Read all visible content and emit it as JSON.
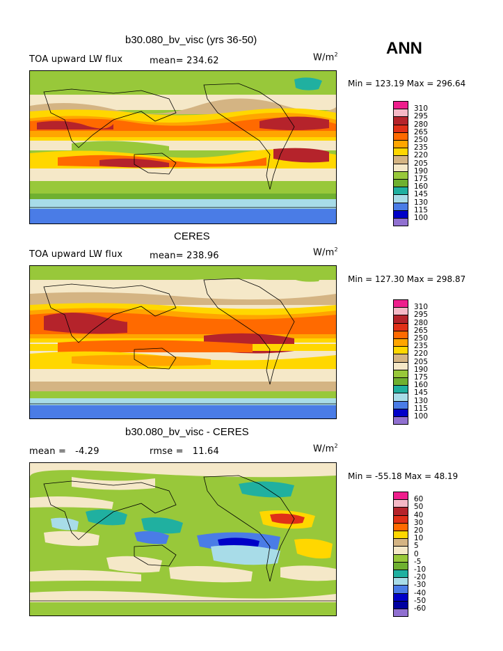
{
  "season": "ANN",
  "units_base": "W/m",
  "units_exp": "2",
  "panels": [
    {
      "title": "b30.080_bv_visc (yrs 36-50)",
      "left_label": "TOA upward LW flux",
      "stat_label": "mean= 234.62",
      "minmax": "Min = 123.19 Max = 296.64"
    },
    {
      "title": "CERES",
      "left_label": "TOA upward LW flux",
      "stat_label": "mean= 238.96",
      "minmax": "Min = 127.30 Max = 298.87"
    },
    {
      "title": "b30.080_bv_visc - CERES",
      "left_label": "mean =   -4.29",
      "stat_label": "rmse =   11.64",
      "minmax": "Min = -55.18 Max =  48.19"
    }
  ],
  "colorbars": {
    "flux": {
      "labels": [
        "310",
        "295",
        "280",
        "265",
        "250",
        "235",
        "220",
        "205",
        "190",
        "175",
        "160",
        "145",
        "130",
        "115",
        "100"
      ],
      "colors": [
        "#ee1e8c",
        "#f5b8c6",
        "#b5232b",
        "#e03018",
        "#ff6a00",
        "#ffa500",
        "#ffd700",
        "#d4b483",
        "#f5e8c8",
        "#98c83a",
        "#6fb030",
        "#20b0a0",
        "#a8dce8",
        "#4a7ce6",
        "#0000c8",
        "#9070d0"
      ]
    },
    "diff": {
      "labels": [
        "60",
        "50",
        "40",
        "30",
        "20",
        "10",
        "5",
        "0",
        "-5",
        "-10",
        "-20",
        "-30",
        "-40",
        "-50",
        "-60"
      ],
      "colors": [
        "#ee1e8c",
        "#f5b8c6",
        "#b5232b",
        "#e03018",
        "#ff6a00",
        "#ffd700",
        "#d4b483",
        "#f5e8c8",
        "#98c83a",
        "#6fb030",
        "#20b0a0",
        "#a8dce8",
        "#4a7ce6",
        "#0000c8",
        "#0000a0",
        "#9070d0"
      ]
    }
  }
}
